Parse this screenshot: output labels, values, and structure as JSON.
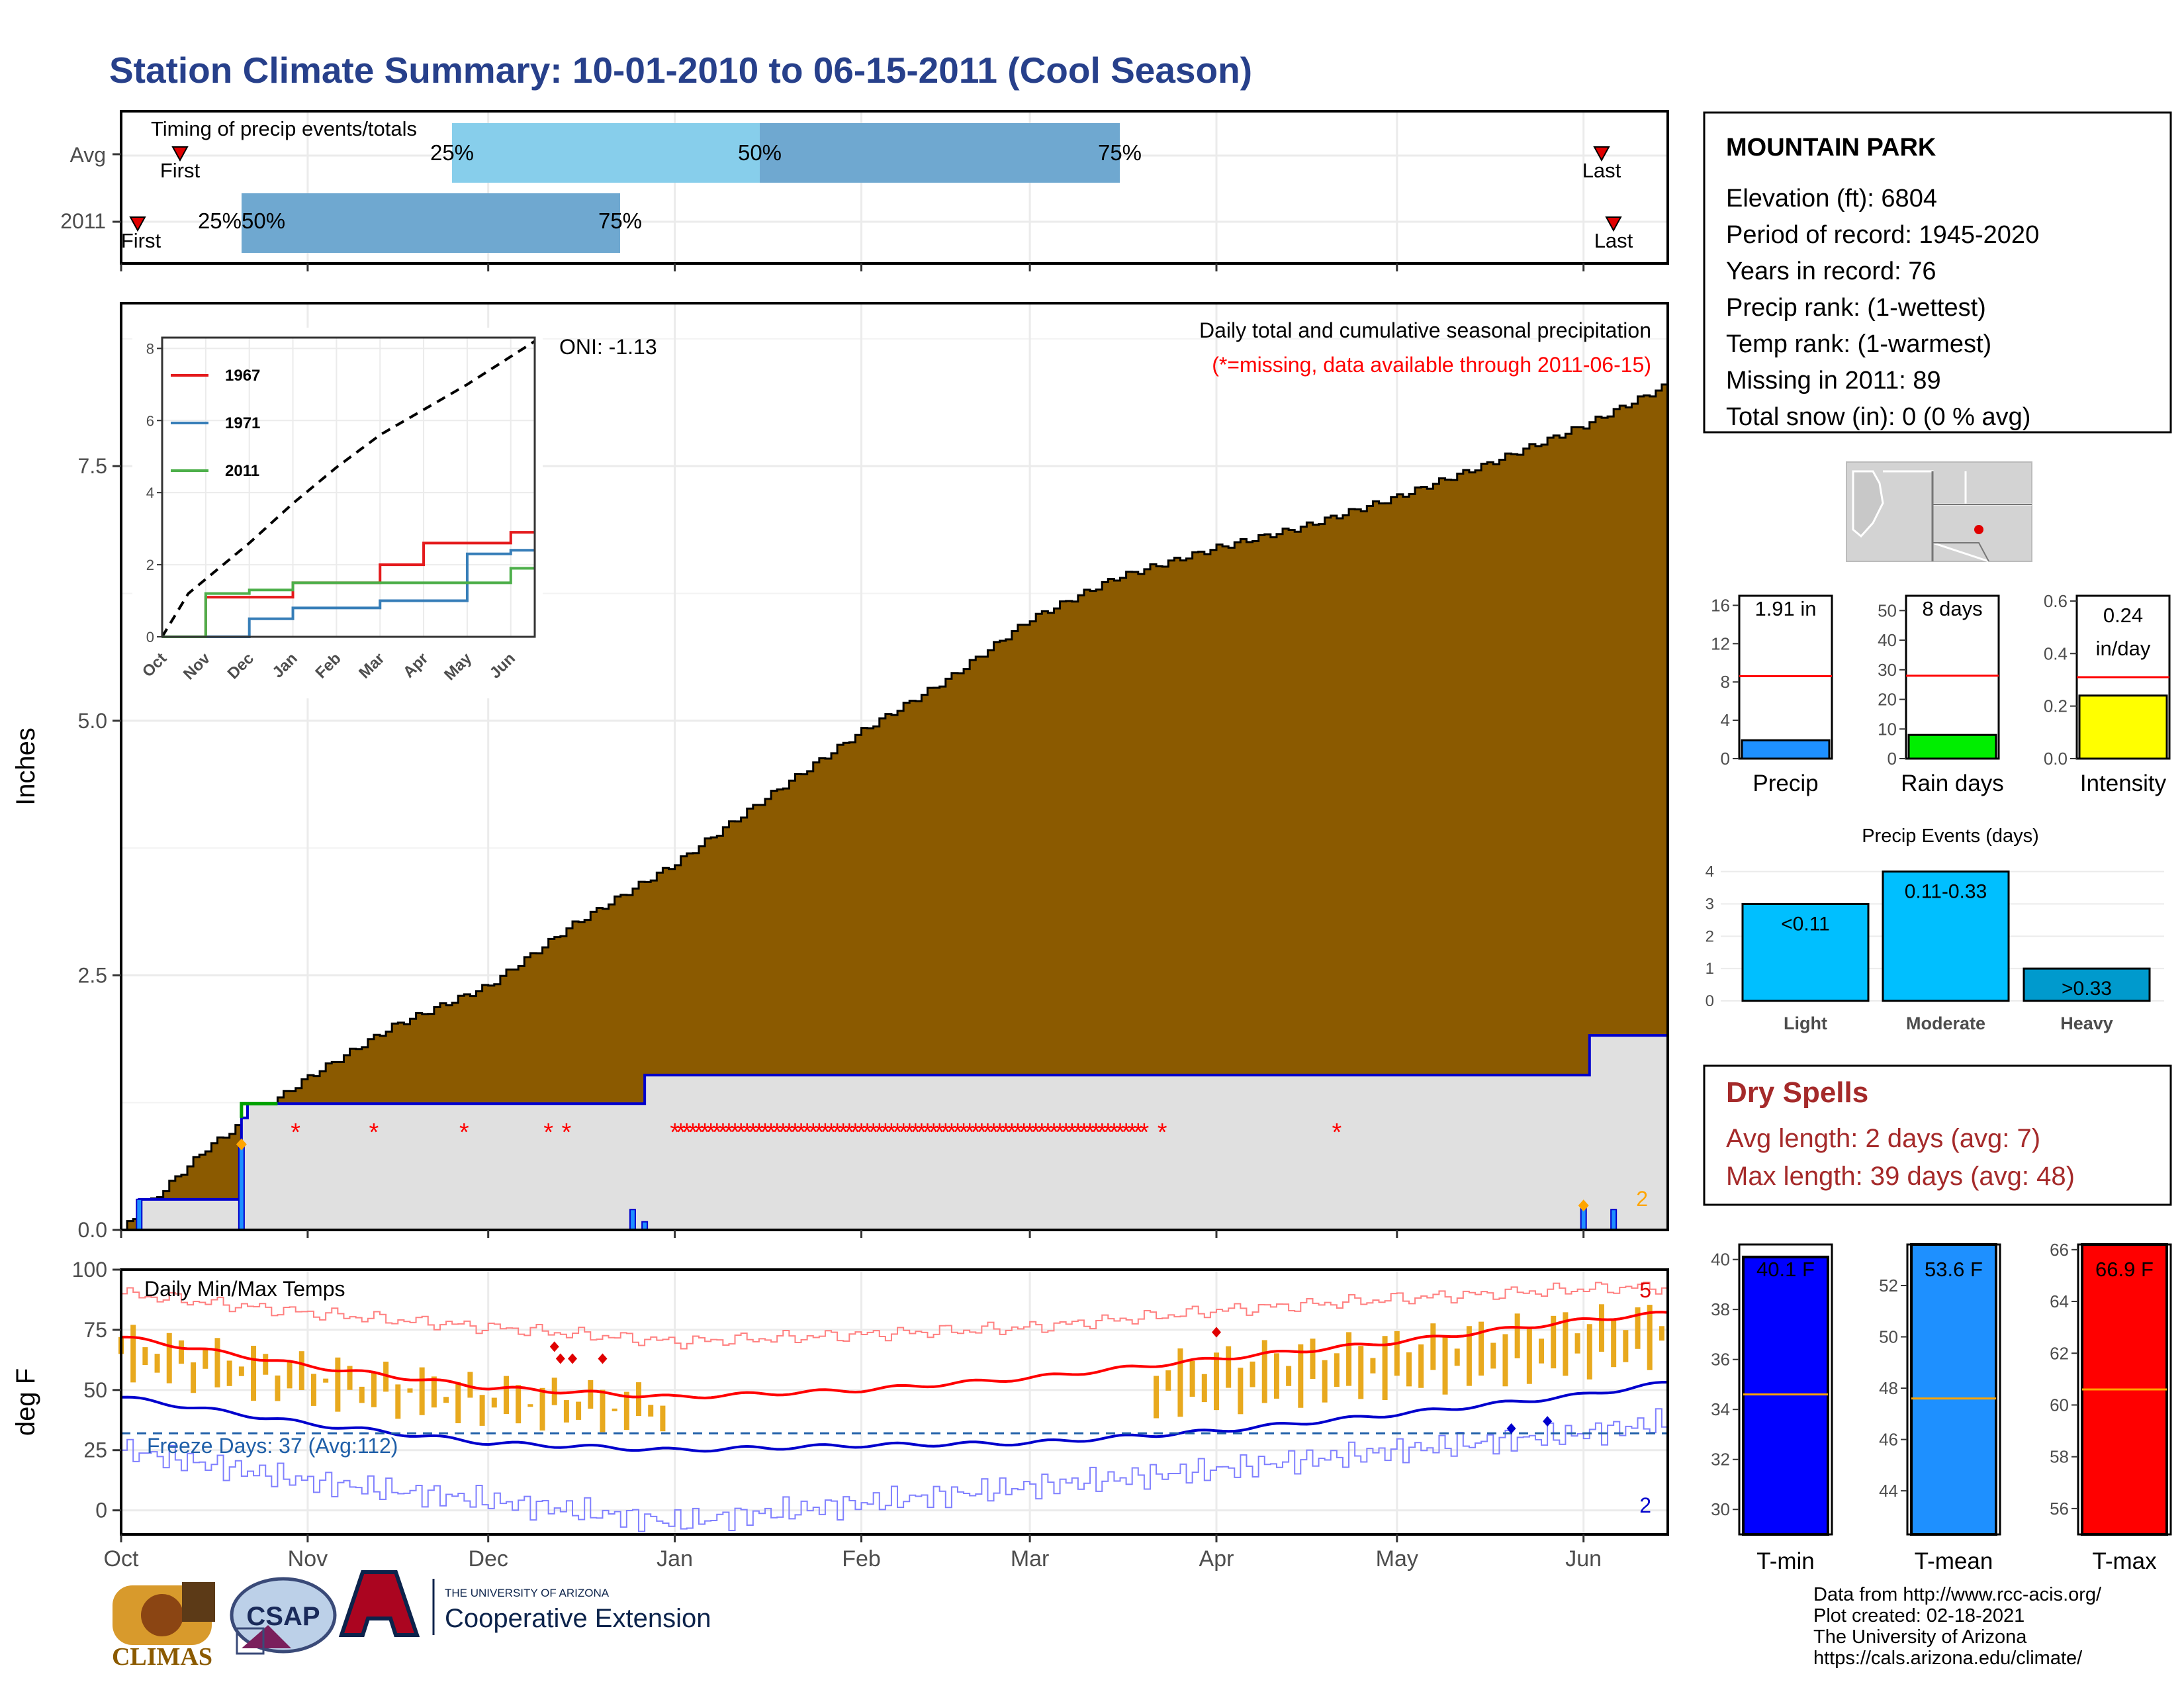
{
  "title": "Station Climate Summary: 10-01-2010 to 06-15-2011 (Cool Season)",
  "colors": {
    "title": "#27408b",
    "cumulative_fill": "#8b5a00",
    "light_gray": "#e0e0e0",
    "series_blue": "#0000cd",
    "missing_red": "#ff0000",
    "bar_orange": "#e8a91e",
    "tmax_red": "#ff0000",
    "tmin_blue": "#0000cd",
    "freeze_line": "#1f5fa8",
    "timing_light": "#87ceeb",
    "timing_mid": "#6fa8d0",
    "dry_spell": "#a52a2a",
    "sky": "#00bfff",
    "sky_dark": "#009acd"
  },
  "timing": {
    "title": "Timing of precip events/totals",
    "rows": [
      "Avg",
      "2011"
    ],
    "first_label": "First",
    "last_label": "Last",
    "pct25": "25%",
    "pct50": "50%",
    "pct75": "75%",
    "pct_overlap": "25%50%"
  },
  "station": {
    "name": "MOUNTAIN PARK",
    "lines": [
      "Elevation (ft): 6804",
      "Period of record: 1945-2020",
      "Years in record: 76",
      "Precip rank:  (1-wettest)",
      "Temp rank:  (1-warmest)",
      "Missing in 2011: 89",
      "Total snow (in): 0 (0 % avg)"
    ]
  },
  "main_panel": {
    "ylabel": "Inches",
    "caption": "Daily total and cumulative seasonal precipitation",
    "missing_note": "(*=missing, data available through 2011-06-15)",
    "oni": "ONI: -1.13",
    "count_label": "2",
    "missing_marker": "*"
  },
  "inset": {
    "legend": [
      "1967",
      "1971",
      "2011"
    ],
    "months": [
      "Oct",
      "Nov",
      "Dec",
      "Jan",
      "Feb",
      "Mar",
      "Apr",
      "May",
      "Jun"
    ]
  },
  "temp_panel": {
    "ylabel": "deg F",
    "title": "Daily Min/Max Temps",
    "freeze": "Freeze Days: 37 (Avg:112)",
    "count_high": "5",
    "count_low": "2"
  },
  "x_months": [
    "Oct",
    "Nov",
    "Dec",
    "Jan",
    "Feb",
    "Mar",
    "Apr",
    "May",
    "Jun"
  ],
  "mini_bars": [
    {
      "label": "Precip",
      "value_text": "1.91 in",
      "value": 1.91,
      "avg": 8.6,
      "ticks": [
        "0",
        "4",
        "8",
        "12",
        "16"
      ],
      "ymax": 17,
      "color": "#1e90ff"
    },
    {
      "label": "Rain days",
      "value_text": "8 days",
      "value": 8,
      "avg": 28,
      "ticks": [
        "0",
        "10",
        "20",
        "30",
        "40",
        "50"
      ],
      "ymax": 55,
      "color": "#00ee00"
    },
    {
      "label": "Intensity",
      "value_text": "0.24 in/day",
      "value_line1": "0.24",
      "value_line2": "in/day",
      "value": 0.24,
      "avg": 0.31,
      "ticks": [
        "0.0",
        "0.2",
        "0.4",
        "0.6"
      ],
      "ymax": 0.62,
      "color": "#ffff00"
    }
  ],
  "events": {
    "title": "Precip Events (days)",
    "ticks": [
      "0",
      "1",
      "2",
      "3",
      "4"
    ],
    "bars": [
      {
        "cat": "Light",
        "label": "<0.11",
        "value": 3
      },
      {
        "cat": "Moderate",
        "label": "0.11-0.33",
        "value": 4
      },
      {
        "cat": "Heavy",
        "label": ">0.33",
        "value": 1
      }
    ]
  },
  "dry_spells": {
    "title": "Dry Spells",
    "avg": "Avg length: 2 days (avg: 7)",
    "max": "Max length: 39 days (avg: 48)"
  },
  "temp_bars": [
    {
      "label": "T-min",
      "value_text": "40.1 F",
      "value": 40.1,
      "avg": 34.6,
      "ticks": [
        "30",
        "32",
        "34",
        "36",
        "38",
        "40"
      ],
      "tick_vals": [
        30,
        32,
        34,
        36,
        38,
        40
      ],
      "ymin": 29,
      "ymax": 40.6,
      "color": "#0000ff"
    },
    {
      "label": "T-mean",
      "value_text": "53.6 F",
      "value": 53.6,
      "avg": 47.6,
      "ticks": [
        "44",
        "46",
        "48",
        "50",
        "52"
      ],
      "tick_vals": [
        44,
        46,
        48,
        50,
        52
      ],
      "ymin": 42.3,
      "ymax": 53.6,
      "color": "#1e90ff"
    },
    {
      "label": "T-max",
      "value_text": "66.9 F",
      "value": 66.9,
      "avg": 60.6,
      "ticks": [
        "56",
        "58",
        "60",
        "62",
        "64",
        "66"
      ],
      "tick_vals": [
        56,
        58,
        60,
        62,
        64,
        66
      ],
      "ymin": 55,
      "ymax": 66.2,
      "color": "#ff0000"
    }
  ],
  "footer": {
    "lines": [
      "Data from http://www.rcc-acis.org/",
      "Plot created: 02-18-2021",
      "The University of Arizona",
      "https://cals.arizona.edu/climate/"
    ],
    "climas": "CLIMAS",
    "csap": "CSAP",
    "ua_small": "THE UNIVERSITY OF ARIZONA",
    "ua_big": "Cooperative Extension"
  },
  "chart_data": [
    {
      "type": "area",
      "title": "Daily total and cumulative seasonal precipitation",
      "ylabel": "Inches",
      "ylim": [
        0,
        9.1
      ],
      "yticks": [
        0.0,
        2.5,
        5.0,
        7.5
      ],
      "x_range": [
        "2010-10-01",
        "2011-06-15"
      ],
      "series": [
        {
          "name": "cumulative average",
          "x": [
            "2010-10-01",
            "2010-10-15",
            "2010-11-01",
            "2010-11-15",
            "2010-12-01",
            "2010-12-15",
            "2011-01-01",
            "2011-01-15",
            "2011-02-01",
            "2011-02-15",
            "2011-03-01",
            "2011-03-15",
            "2011-04-01",
            "2011-04-15",
            "2011-05-01",
            "2011-05-15",
            "2011-06-01",
            "2011-06-15"
          ],
          "values": [
            0.0,
            0.8,
            1.5,
            2.0,
            2.4,
            3.0,
            3.6,
            4.2,
            4.9,
            5.4,
            6.0,
            6.4,
            6.7,
            6.9,
            7.2,
            7.5,
            7.9,
            8.3
          ]
        },
        {
          "name": "2011 cumulative",
          "x": [
            "2010-10-01",
            "2010-10-04",
            "2010-10-20",
            "2010-10-21",
            "2010-10-22",
            "2010-12-26",
            "2010-12-27",
            "2011-06-01",
            "2011-06-02",
            "2011-06-15"
          ],
          "values": [
            0.0,
            0.3,
            0.3,
            1.1,
            1.24,
            1.24,
            1.52,
            1.52,
            1.91,
            1.91
          ]
        }
      ],
      "daily_precip": [
        {
          "x": "2010-10-04",
          "value": 0.3
        },
        {
          "x": "2010-10-21",
          "value": 0.84
        },
        {
          "x": "2010-12-25",
          "value": 0.2
        },
        {
          "x": "2010-12-27",
          "value": 0.08
        },
        {
          "x": "2011-06-01",
          "value": 0.22
        },
        {
          "x": "2011-06-06",
          "value": 0.2
        }
      ],
      "missing_days": [
        "2010-10-30",
        "2010-11-12",
        "2010-11-27",
        "2010-12-11",
        "2010-12-14",
        "2011-01-01 to 2011-03-20",
        "2011-03-23",
        "2011-04-21"
      ]
    },
    {
      "type": "line",
      "title": "",
      "ylim": [
        0,
        8
      ],
      "x": [
        "Oct",
        "Nov",
        "Dec",
        "Jan",
        "Feb",
        "Mar",
        "Apr",
        "May",
        "Jun"
      ],
      "series": [
        {
          "name": "1967",
          "values": [
            0.0,
            1.1,
            1.1,
            1.5,
            1.5,
            2.0,
            2.6,
            2.6,
            2.9
          ]
        },
        {
          "name": "1971",
          "values": [
            0.0,
            0.0,
            0.5,
            0.8,
            0.8,
            1.0,
            1.0,
            2.3,
            2.4
          ]
        },
        {
          "name": "2011",
          "values": [
            0.0,
            1.2,
            1.3,
            1.5,
            1.5,
            1.5,
            1.5,
            1.5,
            1.9
          ]
        }
      ]
    },
    {
      "type": "line",
      "title": "Daily Min/Max Temps",
      "ylabel": "deg F",
      "ylim": [
        -10,
        100
      ],
      "yticks": [
        0,
        25,
        50,
        75,
        100
      ],
      "x": [
        "2010-10-01",
        "2010-11-01",
        "2010-12-01",
        "2011-01-01",
        "2011-02-01",
        "2011-03-01",
        "2011-04-01",
        "2011-05-01",
        "2011-06-01",
        "2011-06-15"
      ],
      "series": [
        {
          "name": "avg max",
          "values": [
            72,
            60,
            51,
            47,
            50,
            55,
            63,
            70,
            79,
            82
          ]
        },
        {
          "name": "avg min",
          "values": [
            47,
            36,
            28,
            25,
            27,
            28,
            33,
            40,
            48,
            53
          ]
        },
        {
          "name": "record high",
          "values": [
            90,
            82,
            76,
            70,
            73,
            76,
            83,
            88,
            92,
            93
          ]
        },
        {
          "name": "record low",
          "values": [
            25,
            12,
            4,
            -5,
            3,
            10,
            17,
            25,
            32,
            37
          ]
        }
      ],
      "freeze_threshold": 32
    },
    {
      "type": "bar",
      "title": "Precip Events (days)",
      "categories": [
        "Light",
        "Moderate",
        "Heavy"
      ],
      "values": [
        3,
        4,
        1
      ],
      "ylim": [
        0,
        4.3
      ]
    },
    {
      "type": "bar",
      "categories": [
        "Precip",
        "Rain days",
        "Intensity"
      ],
      "values": [
        1.91,
        8,
        0.24
      ],
      "averages": [
        8.6,
        28,
        0.31
      ]
    },
    {
      "type": "bar",
      "categories": [
        "T-min",
        "T-mean",
        "T-max"
      ],
      "values": [
        40.1,
        53.6,
        66.9
      ],
      "averages": [
        34.6,
        47.6,
        60.6
      ]
    }
  ]
}
